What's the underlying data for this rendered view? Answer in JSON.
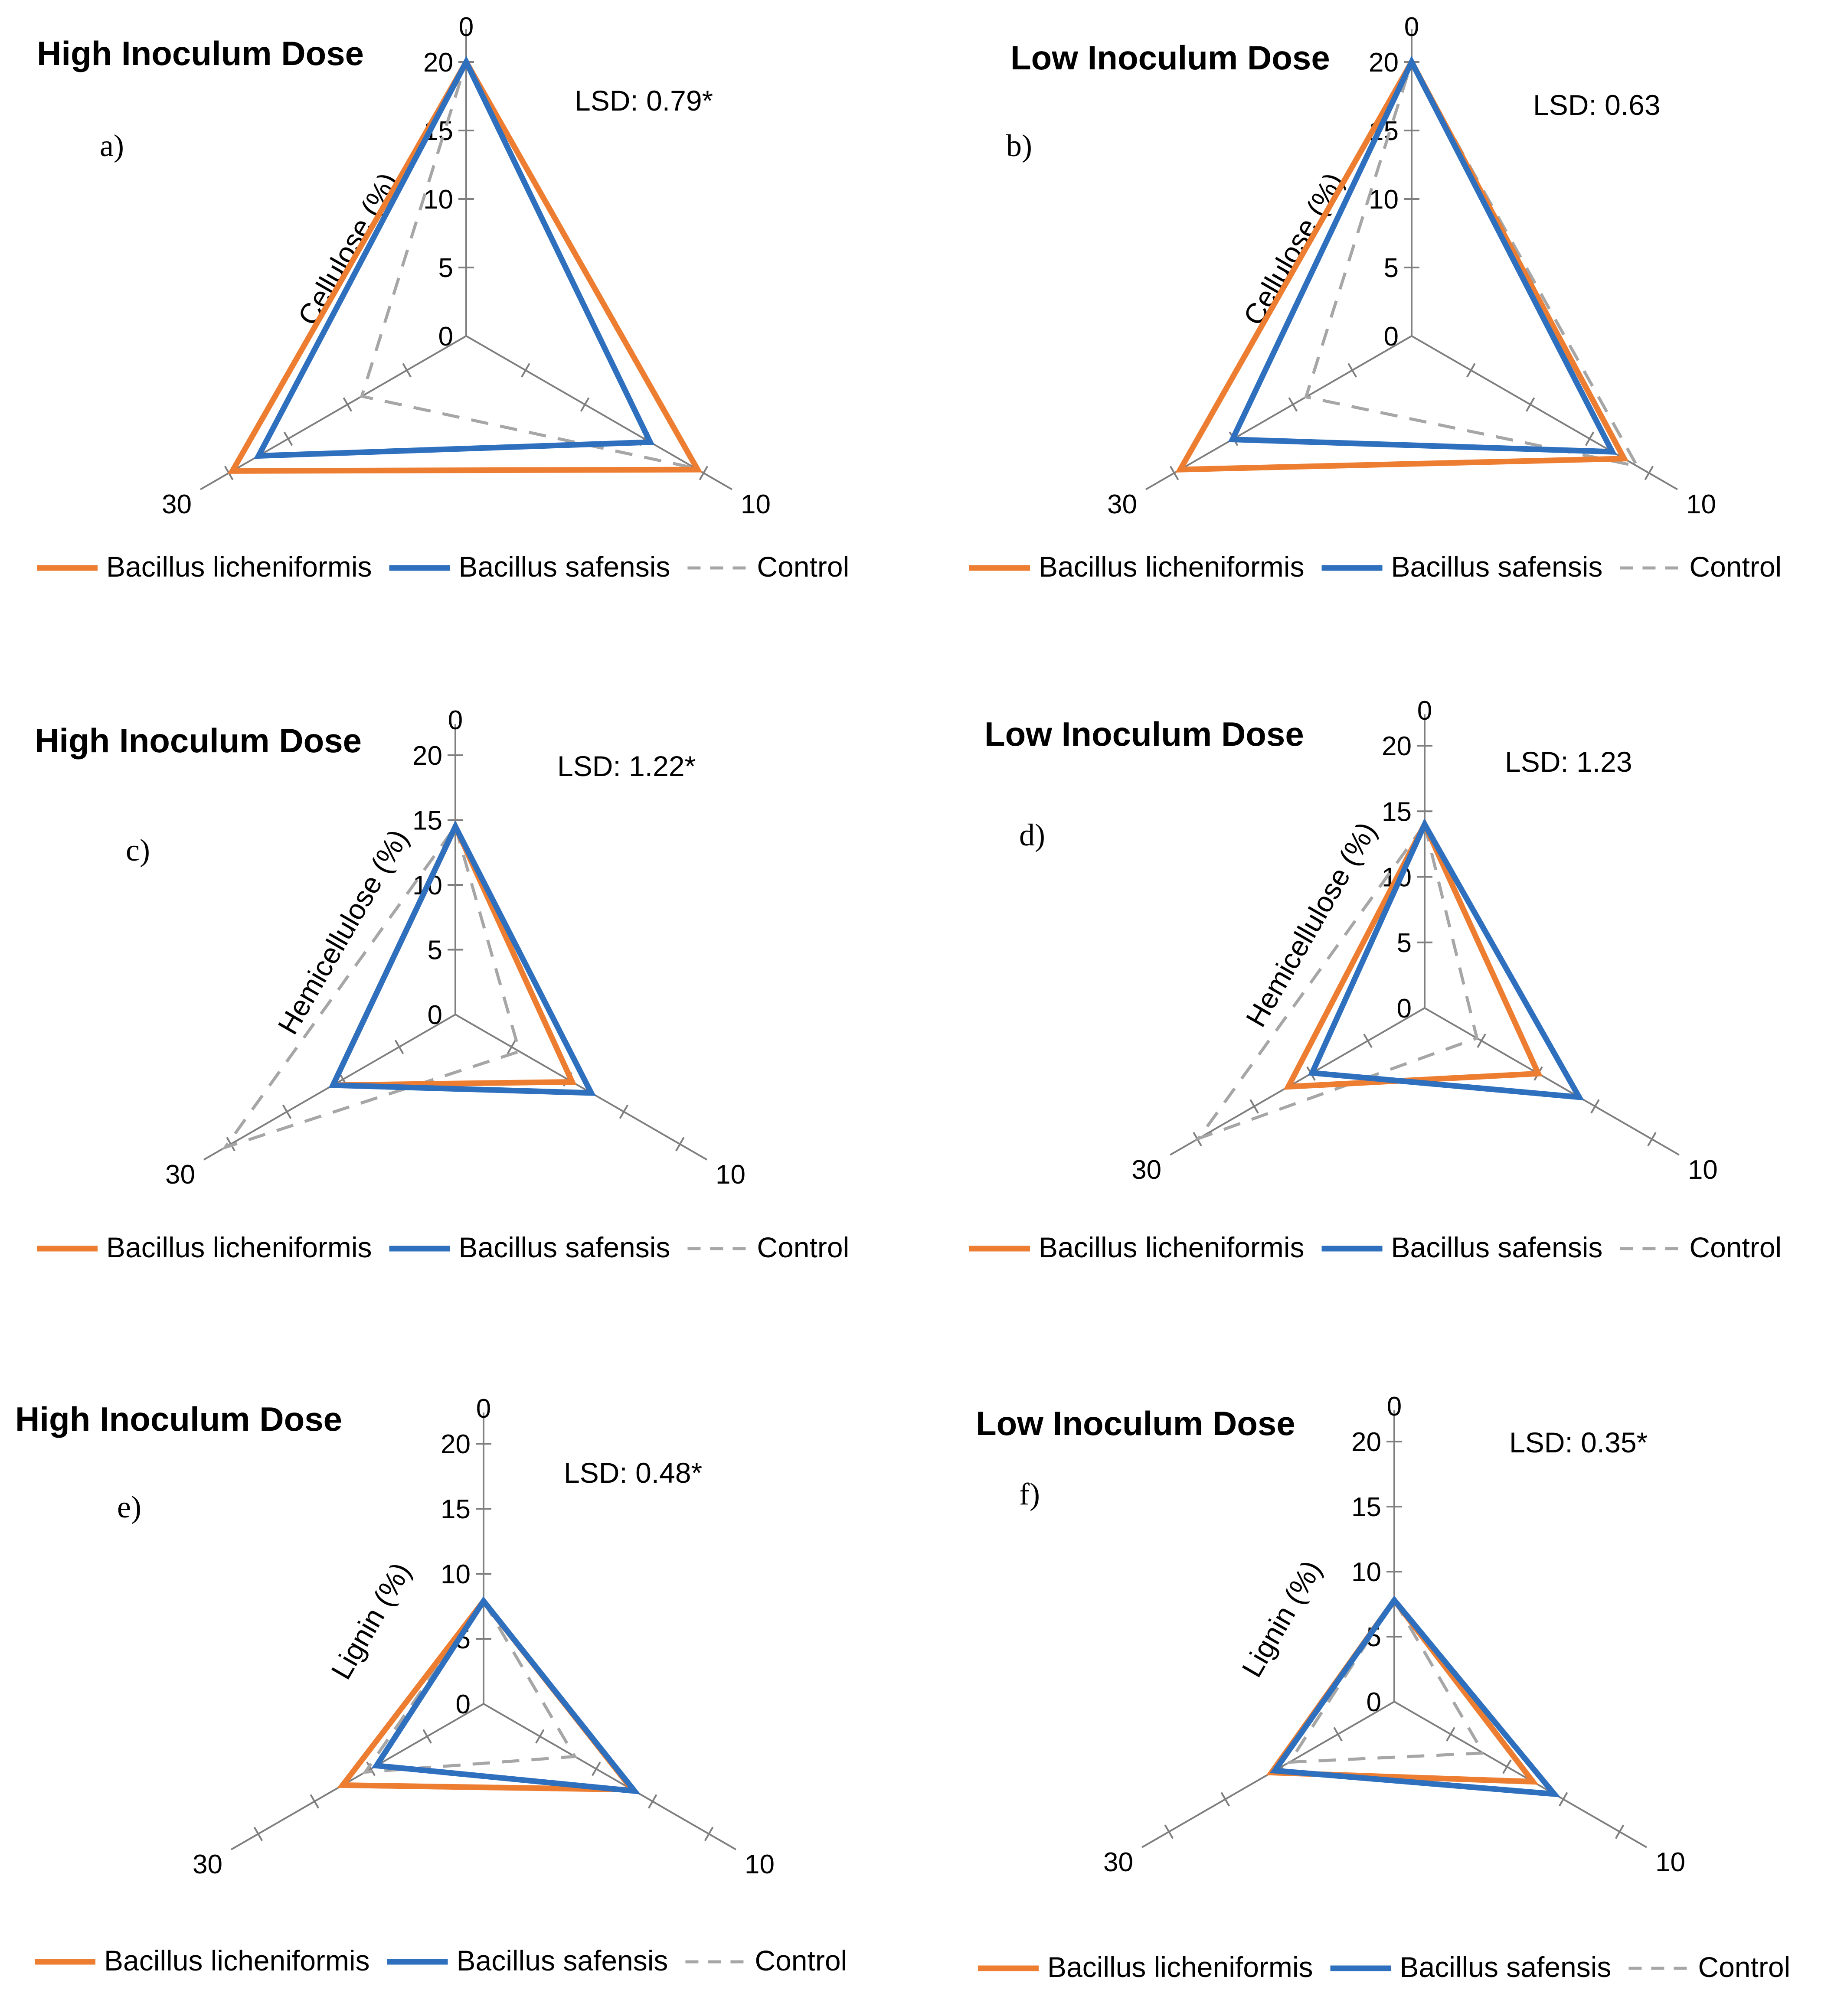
{
  "legend": {
    "lic": "Bacillus licheniformis",
    "saf": "Bacillus safensis",
    "ctl": "Control"
  },
  "colors": {
    "lic": "#ed7d31",
    "saf": "#2e6fbe",
    "ctl": "#a6a6a6",
    "axis": "#7f7f7f"
  },
  "chart_data": [
    {
      "id": "a",
      "type": "radar",
      "letter": "a)",
      "title": "High Inoculum Dose",
      "lsd": "LSD: 0.79*",
      "ylabel": "Cellulose (%)",
      "categories": [
        "0",
        "10",
        "30"
      ],
      "rlim": [
        0,
        20
      ],
      "ticks": [
        "0",
        "5",
        "10",
        "15",
        "20"
      ],
      "series": [
        {
          "key": "lic",
          "name": "Bacillus licheniformis",
          "values": [
            20,
            19.5,
            19.7
          ]
        },
        {
          "key": "saf",
          "name": "Bacillus safensis",
          "values": [
            20,
            15.5,
            17.5
          ]
        },
        {
          "key": "ctl",
          "name": "Control",
          "values": [
            20,
            19.3,
            8.8
          ]
        }
      ]
    },
    {
      "id": "b",
      "type": "radar",
      "letter": "b)",
      "title": "Low Inoculum Dose",
      "lsd": "LSD: 0.63",
      "ylabel": "Cellulose (%)",
      "categories": [
        "0",
        "10",
        "30"
      ],
      "rlim": [
        0,
        20
      ],
      "ticks": [
        "0",
        "5",
        "10",
        "15",
        "20"
      ],
      "series": [
        {
          "key": "lic",
          "name": "Bacillus licheniformis",
          "values": [
            20,
            17.9,
            19.5
          ]
        },
        {
          "key": "saf",
          "name": "Bacillus safensis",
          "values": [
            20,
            16.9,
            15.1
          ]
        },
        {
          "key": "ctl",
          "name": "Control",
          "values": [
            20,
            19.0,
            8.9
          ]
        }
      ]
    },
    {
      "id": "c",
      "type": "radar",
      "letter": "c)",
      "title": "High Inoculum Dose",
      "lsd": "LSD: 1.22*",
      "ylabel": "Hemicellulose (%)",
      "categories": [
        "0",
        "10",
        "30"
      ],
      "rlim": [
        0,
        20
      ],
      "ticks": [
        "0",
        "5",
        "10",
        "15",
        "20"
      ],
      "series": [
        {
          "key": "lic",
          "name": "Bacillus licheniformis",
          "values": [
            14.5,
            10.4,
            10.9
          ]
        },
        {
          "key": "saf",
          "name": "Bacillus safensis",
          "values": [
            14.5,
            12.1,
            10.9
          ]
        },
        {
          "key": "ctl",
          "name": "Control",
          "values": [
            14.5,
            5.7,
            20.5
          ]
        }
      ]
    },
    {
      "id": "d",
      "type": "radar",
      "letter": "d)",
      "title": "Low Inoculum Dose",
      "lsd": "LSD: 1.23",
      "ylabel": "Hemicellulose (%)",
      "categories": [
        "0",
        "10",
        "30"
      ],
      "rlim": [
        0,
        20
      ],
      "ticks": [
        "0",
        "5",
        "10",
        "15",
        "20"
      ],
      "series": [
        {
          "key": "lic",
          "name": "Bacillus licheniformis",
          "values": [
            14.0,
            10.0,
            12.0
          ]
        },
        {
          "key": "saf",
          "name": "Bacillus safensis",
          "values": [
            14.0,
            13.6,
            9.9
          ]
        },
        {
          "key": "ctl",
          "name": "Control",
          "values": [
            14.0,
            4.6,
            19.9
          ]
        }
      ]
    },
    {
      "id": "e",
      "type": "radar",
      "letter": "e)",
      "title": "High Inoculum Dose",
      "lsd": "LSD: 0.48*",
      "ylabel": "Lignin (%)",
      "categories": [
        "0",
        "10",
        "30"
      ],
      "rlim": [
        0,
        20
      ],
      "ticks": [
        "0",
        "5",
        "10",
        "15",
        "20"
      ],
      "series": [
        {
          "key": "lic",
          "name": "Bacillus licheniformis",
          "values": [
            7.9,
            13.2,
            12.5
          ]
        },
        {
          "key": "saf",
          "name": "Bacillus safensis",
          "values": [
            7.9,
            13.4,
            9.5
          ]
        },
        {
          "key": "ctl",
          "name": "Control",
          "values": [
            7.9,
            8.1,
            10.5
          ]
        }
      ]
    },
    {
      "id": "f",
      "type": "radar",
      "letter": "f)",
      "title": "Low Inoculum Dose",
      "lsd": "LSD: 0.35*",
      "ylabel": "Lignin (%)",
      "categories": [
        "0",
        "10",
        "30"
      ],
      "rlim": [
        0,
        20
      ],
      "ticks": [
        "0",
        "5",
        "10",
        "15",
        "20"
      ],
      "series": [
        {
          "key": "lic",
          "name": "Bacillus licheniformis",
          "values": [
            7.8,
            12.3,
            10.9
          ]
        },
        {
          "key": "saf",
          "name": "Bacillus safensis",
          "values": [
            7.8,
            14.2,
            10.6
          ]
        },
        {
          "key": "ctl",
          "name": "Control",
          "values": [
            7.8,
            7.9,
            9.3
          ]
        }
      ]
    }
  ]
}
